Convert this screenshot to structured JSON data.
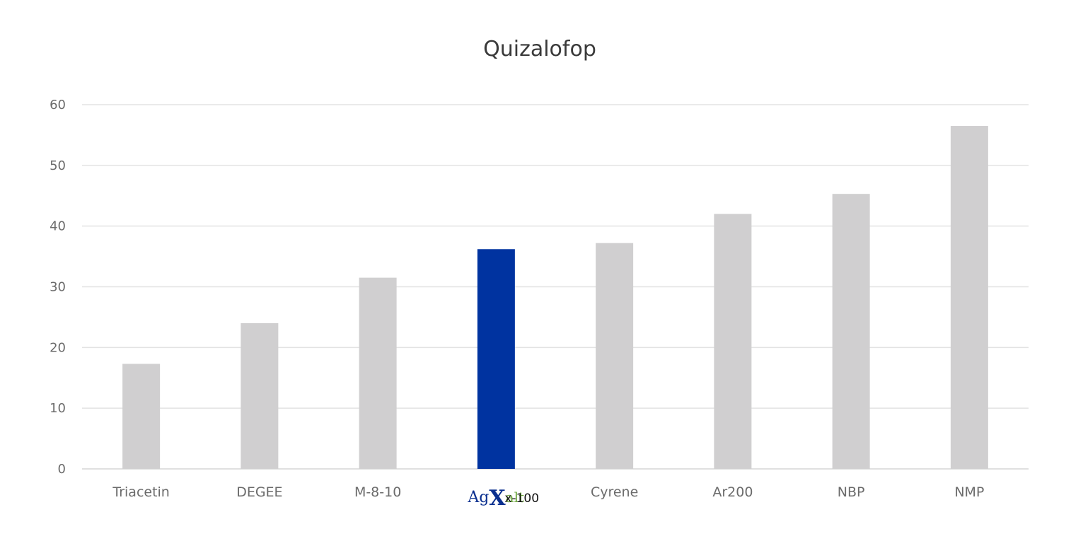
{
  "chart_data": {
    "type": "bar",
    "title": "Quizalofop",
    "xlabel": "",
    "ylabel": "",
    "ylim": [
      0,
      60
    ],
    "yticks": [
      0,
      10,
      20,
      30,
      40,
      50,
      60
    ],
    "grid": true,
    "categories": [
      "Triacetin",
      "DEGEE",
      "M-8-10",
      "AgXalt x-100",
      "Cyrene",
      "Ar200",
      "NBP",
      "NMP"
    ],
    "values": [
      17.3,
      24.0,
      31.5,
      36.2,
      37.2,
      42.0,
      45.3,
      56.5
    ],
    "highlight_index": 3,
    "colors": {
      "default_bar": "#d0cfd0",
      "highlight_bar": "#0033a0"
    },
    "highlight_label": {
      "logo_text": "AgXalt",
      "suffix": "x-100",
      "logo_colors": {
        "ag": "#0a2f8f",
        "x": "#0a2f8f",
        "alt": "#6aa53a"
      }
    }
  }
}
